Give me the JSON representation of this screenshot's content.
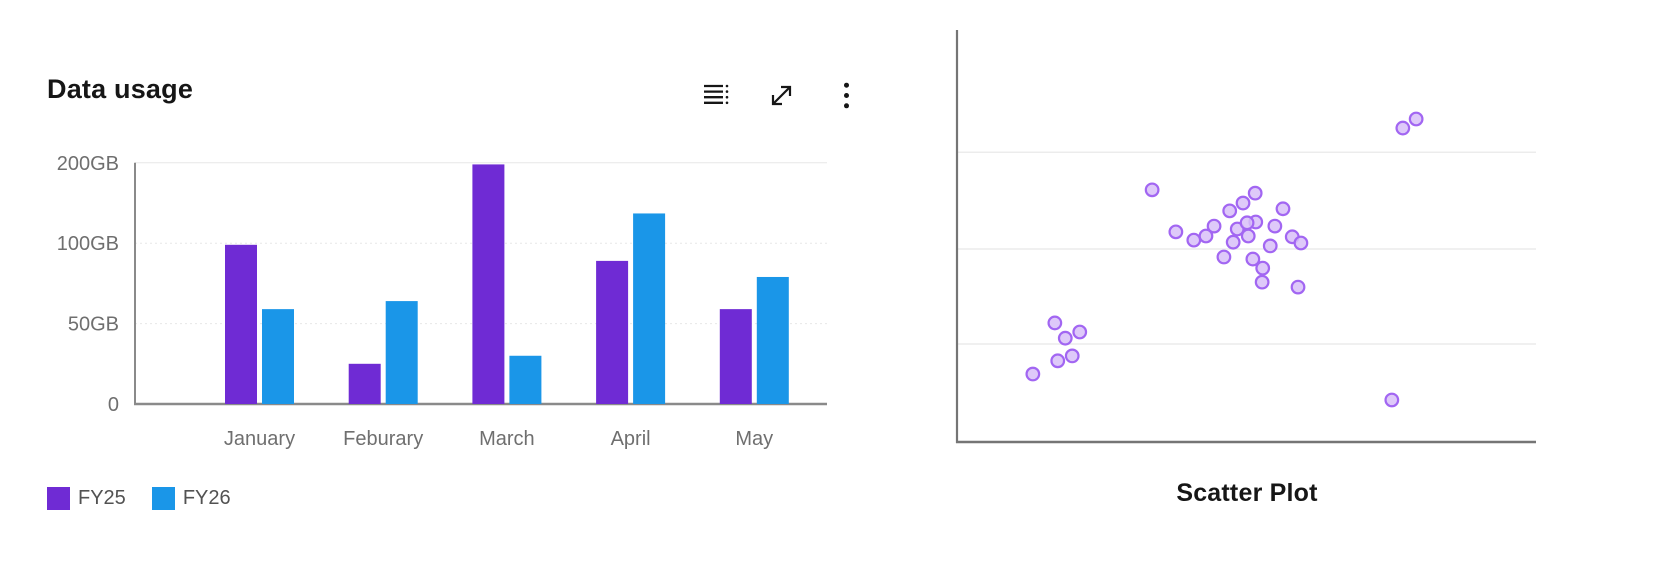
{
  "bar_card": {
    "title": "Data usage",
    "toolbar_icons": [
      {
        "name": "data-table",
        "glyph": "list-with-dots"
      },
      {
        "name": "expand",
        "glyph": "diagonal-double-arrow"
      },
      {
        "name": "overflow-menu",
        "glyph": "vertical-kebab-dots"
      }
    ],
    "colors": {
      "title_text": "#161616",
      "axis_line": "#8a8a8a",
      "tick_text": "#6f6f6f",
      "gridline": "#e7e7e7",
      "legend_text": "#525252"
    }
  },
  "scatter_card": {
    "title": "Scatter Plot",
    "colors": {
      "title_text": "#161616",
      "axis_line": "#757575",
      "gridline": "#ececec",
      "point_fill": "#d8c0f8",
      "point_stroke": "#a266f2"
    }
  },
  "chart_data": [
    {
      "type": "bar",
      "title": "Data usage",
      "categories": [
        "January",
        "Feburary",
        "March",
        "April",
        "May"
      ],
      "series": [
        {
          "name": "FY25",
          "color": "#6f2bd4",
          "values": [
            99,
            25,
            198,
            89,
            59
          ]
        },
        {
          "name": "FY26",
          "color": "#1a96e8",
          "values": [
            59,
            64,
            30,
            137,
            79
          ]
        }
      ],
      "unit": "GB",
      "y_ticks": [
        {
          "value": 0,
          "label": "0"
        },
        {
          "value": 50,
          "label": "50GB"
        },
        {
          "value": 100,
          "label": "100GB"
        },
        {
          "value": 200,
          "label": "200GB"
        }
      ],
      "y_axis_note": "ticks evenly spaced on axis (0, 50GB, 100GB, 200GB) - non-linear scale",
      "grid": "horizontal light dotted gridlines",
      "legend_position": "bottom-left",
      "legend": [
        "FY25",
        "FY26"
      ]
    },
    {
      "type": "scatter",
      "title": "Scatter Plot",
      "axes_labeled": false,
      "grid": "3 horizontal light gridlines, left y-axis line, bottom x-axis line, no tick labels",
      "points_frac_note": "point positions as fractions of plot area measured from bottom-left (no axis values are rendered in the image)",
      "points_frac": [
        [
          0.131,
          0.165
        ],
        [
          0.169,
          0.289
        ],
        [
          0.212,
          0.267
        ],
        [
          0.174,
          0.197
        ],
        [
          0.199,
          0.209
        ],
        [
          0.187,
          0.252
        ],
        [
          0.337,
          0.612
        ],
        [
          0.378,
          0.51
        ],
        [
          0.409,
          0.49
        ],
        [
          0.43,
          0.5
        ],
        [
          0.444,
          0.524
        ],
        [
          0.471,
          0.561
        ],
        [
          0.494,
          0.58
        ],
        [
          0.515,
          0.604
        ],
        [
          0.516,
          0.534
        ],
        [
          0.484,
          0.517
        ],
        [
          0.477,
          0.485
        ],
        [
          0.461,
          0.449
        ],
        [
          0.501,
          0.532
        ],
        [
          0.503,
          0.5
        ],
        [
          0.511,
          0.444
        ],
        [
          0.528,
          0.422
        ],
        [
          0.527,
          0.388
        ],
        [
          0.541,
          0.476
        ],
        [
          0.549,
          0.524
        ],
        [
          0.563,
          0.566
        ],
        [
          0.579,
          0.498
        ],
        [
          0.594,
          0.483
        ],
        [
          0.589,
          0.376
        ],
        [
          0.77,
          0.762
        ],
        [
          0.793,
          0.784
        ],
        [
          0.751,
          0.102
        ]
      ]
    }
  ]
}
